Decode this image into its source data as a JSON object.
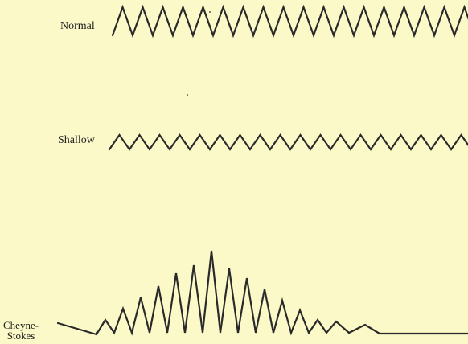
{
  "labels": {
    "normal": "Normal",
    "shallow": "Shallow",
    "cheyne_line1": "Cheyne-",
    "cheyne_line2": "Stokes"
  },
  "colors": {
    "background": "#fbf9c8",
    "ink": "#2a2a2a"
  }
}
